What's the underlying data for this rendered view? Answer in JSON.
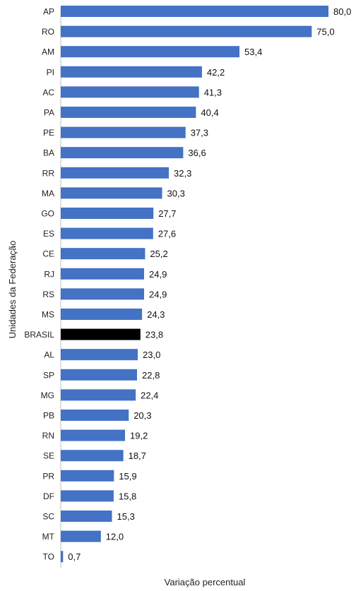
{
  "chart_data": {
    "type": "bar",
    "orientation": "horizontal",
    "title": "",
    "xlabel": "Variação percentual",
    "ylabel": "Unidades da Federação",
    "xlim": [
      0,
      80
    ],
    "grid": false,
    "legend": "none",
    "colors": {
      "bar": "#4472C4",
      "highlight": "#000000"
    },
    "categories": [
      "AP",
      "RO",
      "AM",
      "PI",
      "AC",
      "PA",
      "PE",
      "BA",
      "RR",
      "MA",
      "GO",
      "ES",
      "CE",
      "RJ",
      "RS",
      "MS",
      "BRASIL",
      "AL",
      "SP",
      "MG",
      "PB",
      "RN",
      "SE",
      "PR",
      "DF",
      "SC",
      "MT",
      "TO"
    ],
    "values": [
      80.0,
      75.0,
      53.4,
      42.2,
      41.3,
      40.4,
      37.3,
      36.6,
      32.3,
      30.3,
      27.7,
      27.6,
      25.2,
      24.9,
      24.9,
      24.3,
      23.8,
      23.0,
      22.8,
      22.4,
      20.3,
      19.2,
      18.7,
      15.9,
      15.8,
      15.3,
      12.0,
      0.7
    ],
    "value_labels": [
      "80,0",
      "75,0",
      "53,4",
      "42,2",
      "41,3",
      "40,4",
      "37,3",
      "36,6",
      "32,3",
      "30,3",
      "27,7",
      "27,6",
      "25,2",
      "24,9",
      "24,9",
      "24,3",
      "23,8",
      "23,0",
      "22,8",
      "22,4",
      "20,3",
      "19,2",
      "18,7",
      "15,9",
      "15,8",
      "15,3",
      "12,0",
      "0,7"
    ],
    "highlight_category": "BRASIL"
  }
}
